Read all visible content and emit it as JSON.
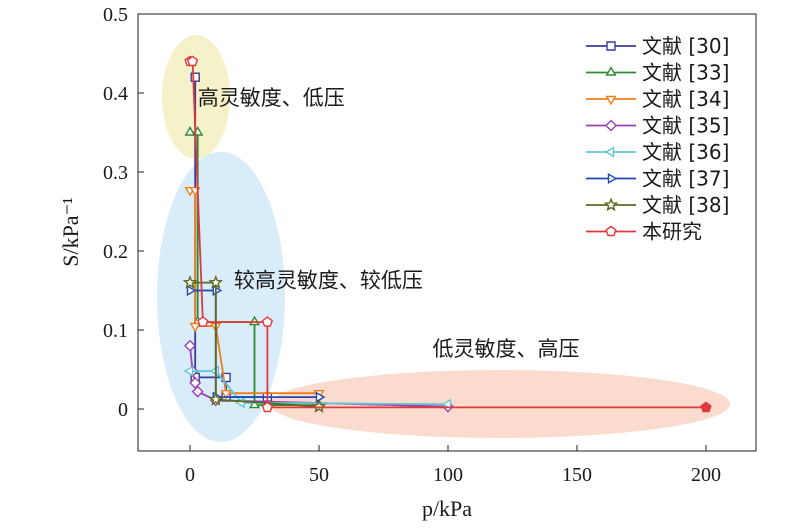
{
  "chart_data": {
    "type": "line",
    "xlabel": "p/kPa",
    "ylabel": "S/kPa⁻¹",
    "xlim": [
      -20,
      210
    ],
    "ylim": [
      -0.05,
      0.5
    ],
    "xticks": [
      0,
      50,
      100,
      150,
      200
    ],
    "yticks": [
      0,
      0.1,
      0.2,
      0.3,
      0.4,
      0.5
    ],
    "xtick_labels": [
      "0",
      "50",
      "100",
      "150",
      "200"
    ],
    "ytick_labels": [
      "0",
      "0.1",
      "0.2",
      "0.3",
      "0.4",
      "0.5"
    ],
    "grid": false,
    "legend_position": "top-right",
    "series": [
      {
        "name": "文献 [30]",
        "color": "#3a3a9a",
        "marker": "square",
        "points": [
          [
            2,
            0.42
          ],
          [
            2,
            0.04
          ],
          [
            14,
            0.04
          ],
          [
            14,
            0.015
          ],
          [
            30,
            0.015
          ]
        ]
      },
      {
        "name": "文献 [33]",
        "color": "#2e8b2e",
        "marker": "triangle-up",
        "points": [
          [
            0,
            0.35
          ],
          [
            3,
            0.35
          ],
          [
            3,
            0.11
          ],
          [
            25,
            0.11
          ],
          [
            25,
            0.005
          ],
          [
            50,
            0.005
          ]
        ]
      },
      {
        "name": "文献 [34]",
        "color": "#f07d1a",
        "marker": "triangle-down",
        "points": [
          [
            0,
            0.277
          ],
          [
            2,
            0.277
          ],
          [
            2,
            0.105
          ],
          [
            10,
            0.105
          ],
          [
            14,
            0.02
          ],
          [
            50,
            0.02
          ]
        ]
      },
      {
        "name": "文献 [35]",
        "color": "#9b3fb5",
        "marker": "diamond",
        "points": [
          [
            0,
            0.08
          ],
          [
            1,
            0.048
          ],
          [
            2,
            0.033
          ],
          [
            3,
            0.022
          ],
          [
            10,
            0.011
          ],
          [
            100,
            0.003
          ]
        ]
      },
      {
        "name": "文献 [36]",
        "color": "#5fc6d3",
        "marker": "triangle-left",
        "points": [
          [
            0,
            0.048
          ],
          [
            10,
            0.048
          ],
          [
            20,
            0.008
          ],
          [
            100,
            0.006
          ]
        ]
      },
      {
        "name": "文献 [37]",
        "color": "#1f47b5",
        "marker": "triangle-right",
        "points": [
          [
            0,
            0.15
          ],
          [
            10,
            0.15
          ],
          [
            10,
            0.015
          ],
          [
            50,
            0.015
          ]
        ]
      },
      {
        "name": "文献 [38]",
        "color": "#5a6b1e",
        "marker": "star",
        "points": [
          [
            0,
            0.16
          ],
          [
            10,
            0.16
          ],
          [
            10,
            0.012
          ],
          [
            50,
            0.003
          ]
        ]
      },
      {
        "name": "本研究",
        "color": "#e0383b",
        "marker": "pentagon",
        "points": [
          [
            0,
            0.44
          ],
          [
            1,
            0.44
          ],
          [
            5,
            0.11
          ],
          [
            30,
            0.11
          ],
          [
            30,
            0.002
          ],
          [
            200,
            0.002
          ]
        ]
      }
    ],
    "annotations": [
      {
        "text": "高灵敏度、低压",
        "x": 3,
        "y": 0.385
      },
      {
        "text": "较高灵敏度、较低压",
        "x": 17,
        "y": 0.154
      },
      {
        "text": "低灵敏度、高压",
        "x": 94,
        "y": 0.067
      }
    ],
    "regions": [
      {
        "color": "#ece59a",
        "label": "高灵敏度、低压"
      },
      {
        "color": "#bfe0f6",
        "label": "较高灵敏度、较低压"
      },
      {
        "color": "#f8c3ad",
        "label": "低灵敏度、高压"
      }
    ]
  }
}
